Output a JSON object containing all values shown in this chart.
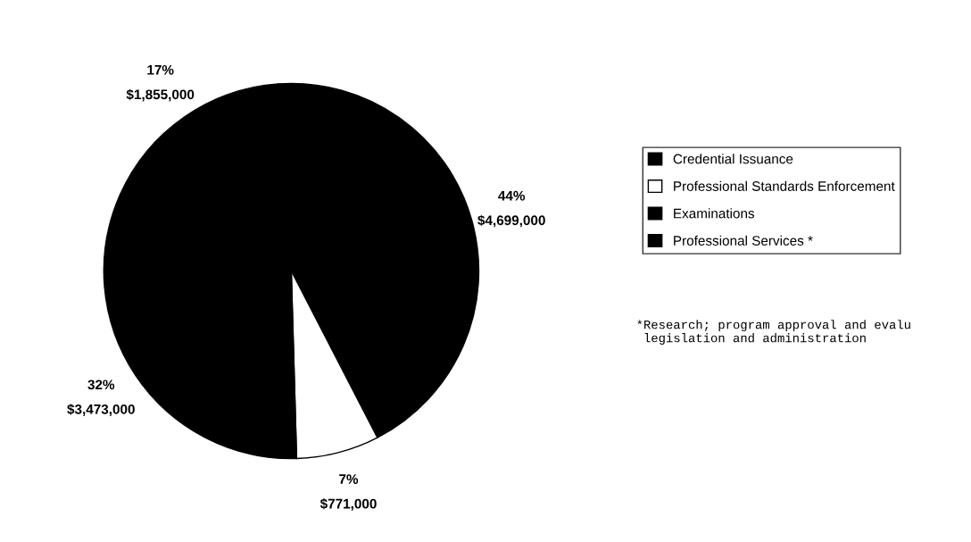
{
  "chart_data": {
    "type": "pie",
    "categories": [
      "Credential Issuance",
      "Professional Standards Enforcement",
      "Examinations",
      "Professional Services *"
    ],
    "values": [
      4699000,
      771000,
      3473000,
      1855000
    ],
    "value_labels": [
      "44%\n$4,699,000",
      "7%\n$771,000",
      "32%\n$3,473,000",
      "17%\n$1,855,000"
    ],
    "colors": [
      "#000000",
      "#ffffff",
      "#000000",
      "#000000"
    ],
    "legend": "right",
    "annotations": [
      "*Research; program approval and evalu\n legislation and administration"
    ]
  }
}
